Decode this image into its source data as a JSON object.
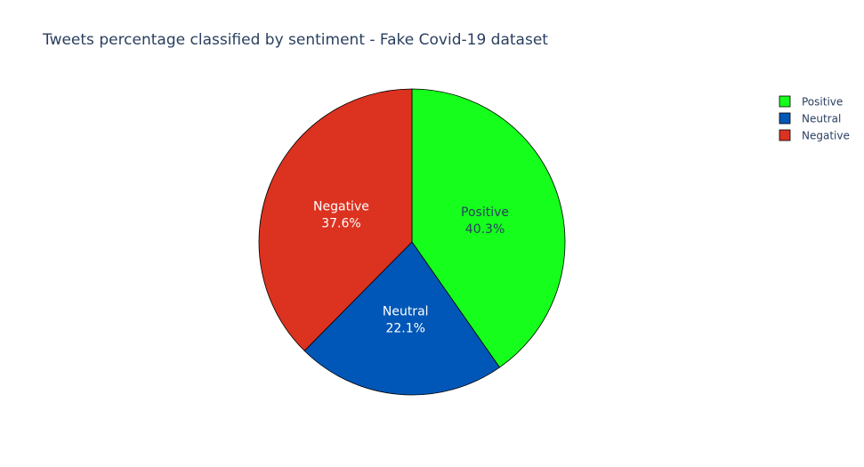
{
  "chart_data": {
    "type": "pie",
    "title": "Tweets percentage classified by sentiment - Fake Covid-19 dataset",
    "labels": [
      "Positive",
      "Neutral",
      "Negative"
    ],
    "values": [
      40.3,
      22.1,
      37.6
    ],
    "text": [
      "40.3%",
      "22.1%",
      "37.6%"
    ],
    "colors": [
      "#16ff1c",
      "#0057b7",
      "#dc3220"
    ],
    "label_colors": [
      "#2a3f5f",
      "#ffffff",
      "#ffffff"
    ],
    "start_angle": "12 o'clock",
    "direction": "clockwise",
    "legend": {
      "position": "right",
      "items": [
        "Positive",
        "Neutral",
        "Negative"
      ]
    }
  }
}
